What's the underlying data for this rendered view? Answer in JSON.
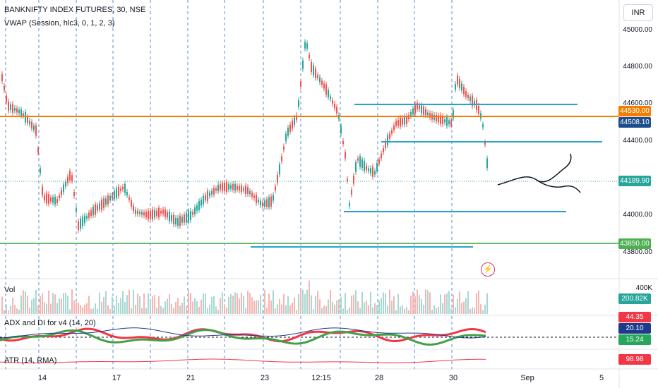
{
  "header": {
    "symbol_title": "BANKNIFTY INDEX FUTURES, 30, NSE",
    "vwap_label": "VWAP (Session, hlc3, 0, 1, 2, 3)",
    "currency": "INR"
  },
  "price_axis": {
    "labels": [
      "45000.00",
      "44800.00",
      "44600.00",
      "44400.00",
      "44000.00",
      "43800.00"
    ]
  },
  "price_tags": {
    "level_orange": {
      "text": "44530.00",
      "color": "#f57c00"
    },
    "vwap": {
      "text": "44508.10",
      "color": "#1e4d8c"
    },
    "last": {
      "text": "44189.90",
      "color": "#26a69a"
    },
    "level_green": {
      "text": "43850.00",
      "color": "#4caf50"
    }
  },
  "volume": {
    "label": "Vol",
    "axis_label": "400K",
    "tag": {
      "text": "200.82K",
      "color": "#26a69a"
    }
  },
  "adx": {
    "label": "ADX and DI for v4 (14, 20)",
    "tags": [
      {
        "text": "44.35",
        "color": "#f23645"
      },
      {
        "text": "20.10",
        "color": "#1e3a8a"
      },
      {
        "text": "15.24",
        "color": "#26a65b"
      }
    ]
  },
  "atr": {
    "label": "ATR (14, RMA)",
    "tag": {
      "text": "98.98",
      "color": "#f23645"
    }
  },
  "time_axis": {
    "labels": [
      "14",
      "17",
      "21",
      "23",
      "12:15",
      "28",
      "30",
      "Sep",
      "5"
    ]
  },
  "icons": {
    "alert": "lightning-alert-icon"
  }
}
